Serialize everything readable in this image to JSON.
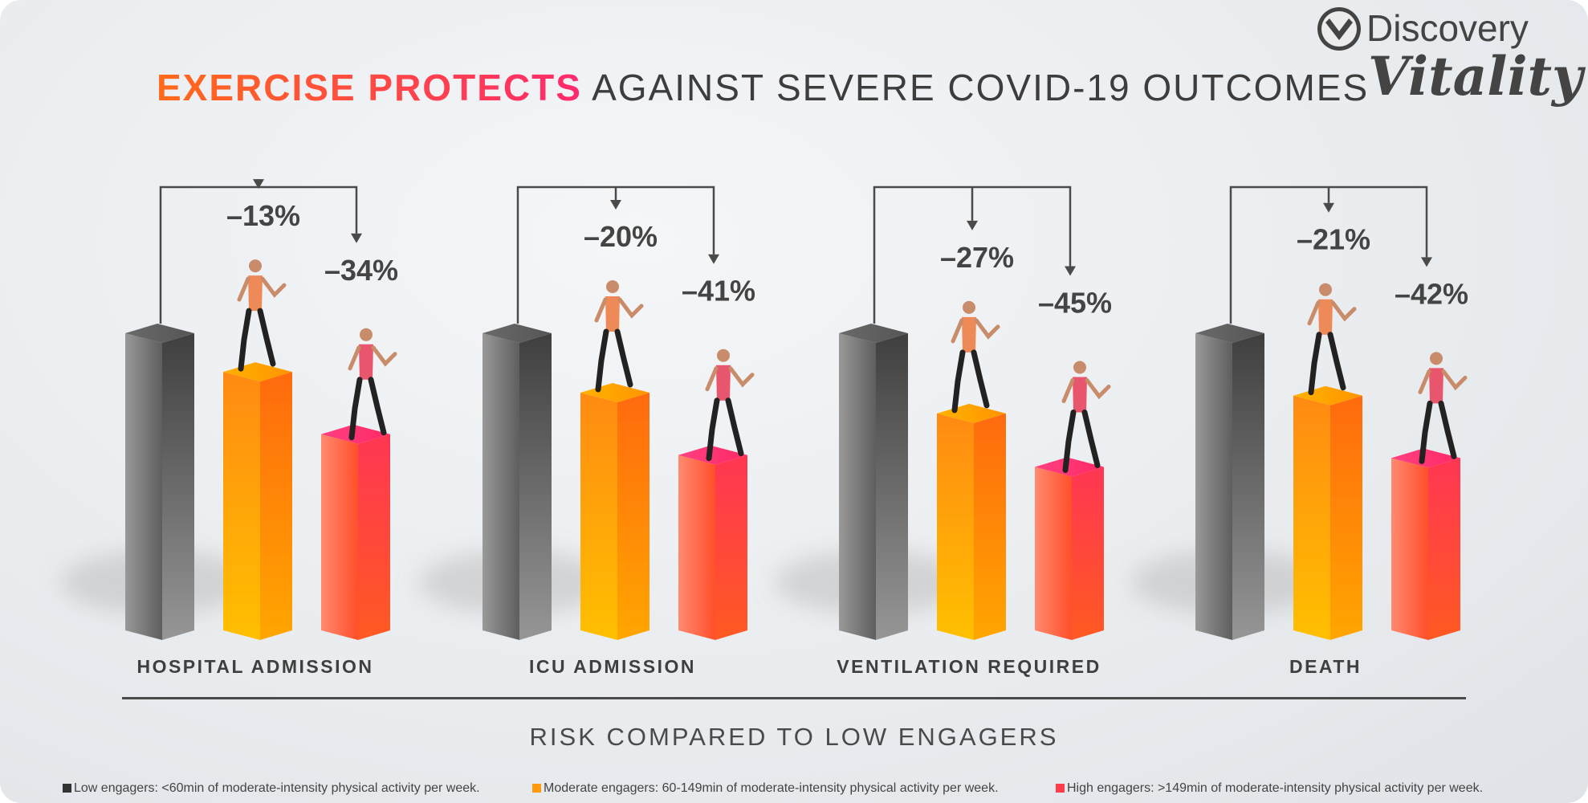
{
  "header": {
    "title_highlight": "EXERCISE PROTECTS",
    "title_rest": "AGAINST SEVERE COVID-19 OUTCOMES"
  },
  "brand": {
    "name": "Discovery",
    "sub": "Vitality"
  },
  "colors": {
    "low": "#7d7d7d",
    "moderate": "#ff9a0e",
    "high": "#ff3d4a",
    "text": "#444444"
  },
  "chart_data": {
    "type": "bar",
    "title": "EXERCISE PROTECTS AGAINST SEVERE COVID-19 OUTCOMES",
    "xlabel": "RISK COMPARED TO LOW ENGAGERS",
    "ylabel": "",
    "ylim": [
      0,
      100
    ],
    "categories": [
      "HOSPITAL ADMISSION",
      "ICU ADMISSION",
      "VENTILATION REQUIRED",
      "DEATH"
    ],
    "series": [
      {
        "name": "Low engagers",
        "values": [
          100,
          100,
          100,
          100
        ],
        "labels": [
          "",
          "",
          "",
          ""
        ]
      },
      {
        "name": "Moderate engagers",
        "values": [
          87,
          80,
          73,
          79
        ],
        "labels": [
          "–13%",
          "–20%",
          "–27%",
          "–21%"
        ]
      },
      {
        "name": "High engagers",
        "values": [
          66,
          59,
          55,
          58
        ],
        "labels": [
          "–34%",
          "–41%",
          "–45%",
          "–42%"
        ]
      }
    ]
  },
  "legend": [
    {
      "text": "Low engagers: <60min of moderate-intensity physical activity per week."
    },
    {
      "text": "Moderate engagers: 60-149min of moderate-intensity physical activity per week."
    },
    {
      "text": "High engagers: >149min of moderate-intensity physical activity per week."
    }
  ]
}
